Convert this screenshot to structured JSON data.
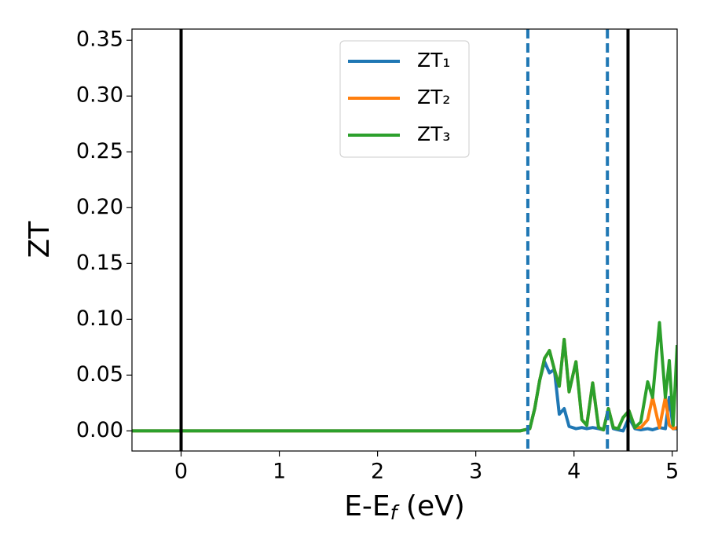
{
  "chart_data": {
    "type": "line",
    "ylabel": "ZT",
    "xlabel": [
      "E-E",
      "f",
      " (eV)"
    ],
    "x": [
      -0.5,
      3.45,
      3.55,
      3.6,
      3.65,
      3.7,
      3.75,
      3.8,
      3.85,
      3.9,
      3.95,
      4.02,
      4.08,
      4.13,
      4.19,
      4.25,
      4.3,
      4.35,
      4.4,
      4.45,
      4.5,
      4.56,
      4.62,
      4.68,
      4.75,
      4.8,
      4.87,
      4.93,
      4.97,
      5.01,
      5.05
    ],
    "series": [
      {
        "name": "ZT₁",
        "color": "#1f77b4",
        "values": [
          0,
          0,
          0.002,
          0.02,
          0.045,
          0.062,
          0.052,
          0.055,
          0.015,
          0.02,
          0.004,
          0.002,
          0.003,
          0.002,
          0.003,
          0.002,
          0.001,
          0.02,
          0.002,
          0.001,
          0,
          0.012,
          0.002,
          0.001,
          0.002,
          0.001,
          0.003,
          0.002,
          0.03,
          0.002,
          0.002
        ]
      },
      {
        "name": "ZT₂",
        "color": "#ff7f0e",
        "values": [
          0,
          0,
          0.002,
          0.02,
          0.045,
          0.065,
          0.072,
          0.055,
          0.04,
          0.082,
          0.035,
          0.062,
          0.01,
          0.005,
          0.043,
          0.003,
          0.001,
          0.02,
          0.003,
          0.002,
          0.012,
          0.018,
          0.003,
          0.003,
          0.01,
          0.03,
          0.003,
          0.03,
          0.005,
          0.002,
          0.003
        ]
      },
      {
        "name": "ZT₃",
        "color": "#2ca02c",
        "values": [
          0,
          0,
          0.002,
          0.02,
          0.045,
          0.065,
          0.072,
          0.055,
          0.04,
          0.082,
          0.035,
          0.062,
          0.01,
          0.005,
          0.043,
          0.003,
          0.001,
          0.02,
          0.003,
          0.002,
          0.012,
          0.018,
          0.003,
          0.008,
          0.044,
          0.03,
          0.097,
          0.03,
          0.063,
          0.005,
          0.077
        ]
      }
    ],
    "vlines": [
      {
        "x": 0,
        "color": "#000000",
        "style": "solid"
      },
      {
        "x": 4.55,
        "color": "#000000",
        "style": "solid"
      },
      {
        "x": 3.53,
        "color": "#1f77b4",
        "style": "dashed"
      },
      {
        "x": 4.34,
        "color": "#1f77b4",
        "style": "dashed"
      }
    ],
    "xlim": [
      -0.5,
      5.05
    ],
    "ylim": [
      -0.018,
      0.36
    ],
    "xticks": [
      0,
      1,
      2,
      3,
      4,
      5
    ],
    "yticks": [
      {
        "value": 0,
        "label": "0.00"
      },
      0.05,
      {
        "value": 0.1,
        "label": "0.10"
      },
      0.15,
      {
        "value": 0.2,
        "label": "0.20"
      },
      0.25,
      {
        "value": 0.3,
        "label": "0.30"
      },
      0.35
    ],
    "legend": "upper center"
  }
}
